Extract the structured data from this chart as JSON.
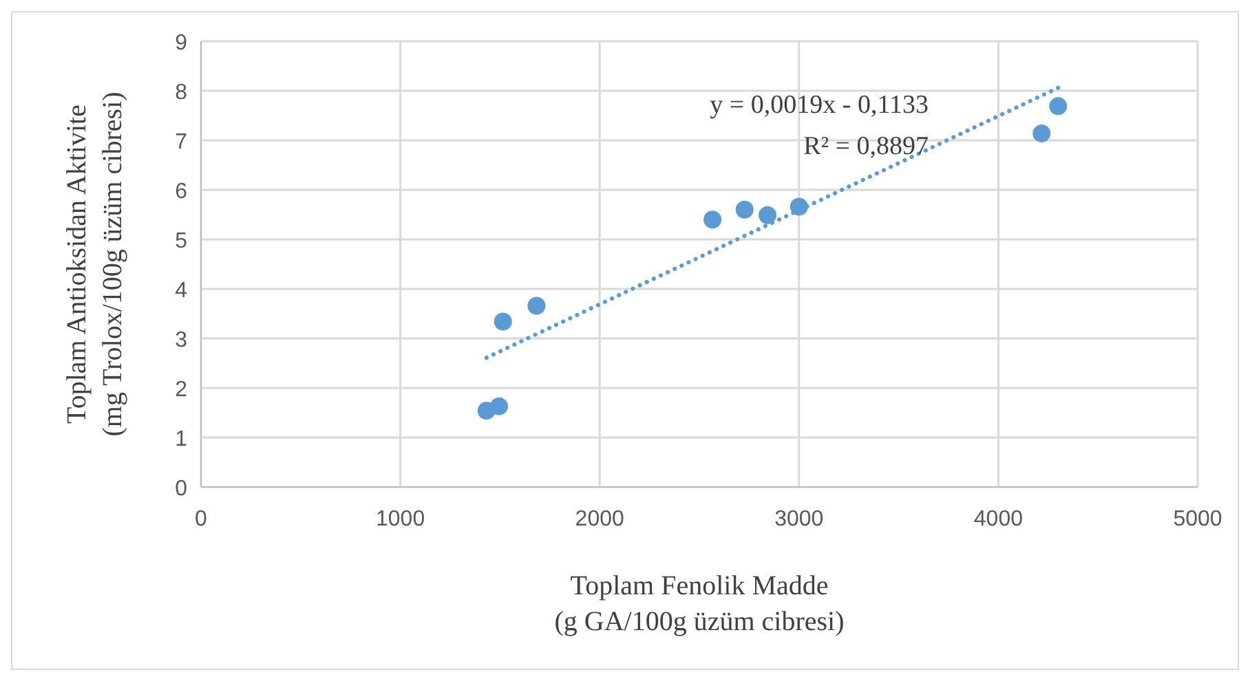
{
  "chart_data": {
    "type": "scatter",
    "xlabel": "Toplam Fenolik Madde\n(g GA/100g üzüm cibresi)",
    "ylabel": "Toplam Antioksidan Aktivite\n(mg Trolox/100g üzüm cibresi)",
    "xlim": [
      0,
      5000
    ],
    "ylim": [
      0,
      9
    ],
    "xticks": [
      0,
      1000,
      2000,
      3000,
      4000,
      5000
    ],
    "yticks": [
      0,
      1,
      2,
      3,
      4,
      5,
      6,
      7,
      8,
      9
    ],
    "grid": true,
    "marker": "circle",
    "series": [
      {
        "color": "#5b9bd5",
        "x": [
          1432,
          1495,
          1515,
          1683,
          2566,
          2727,
          2842,
          3000,
          4217,
          4300
        ],
        "values": [
          1.54,
          1.63,
          3.34,
          3.66,
          5.4,
          5.6,
          5.49,
          5.66,
          7.14,
          7.69
        ]
      },
      {
        "type": "line",
        "color": "#5b9bd5",
        "line_style": "dotted",
        "marker": "none",
        "x": [
          1432,
          4300
        ],
        "values": [
          2.61,
          8.06
        ]
      }
    ],
    "annotations": [
      "y = 0,0019x - 0,1133",
      "R² = 0,8897"
    ]
  }
}
